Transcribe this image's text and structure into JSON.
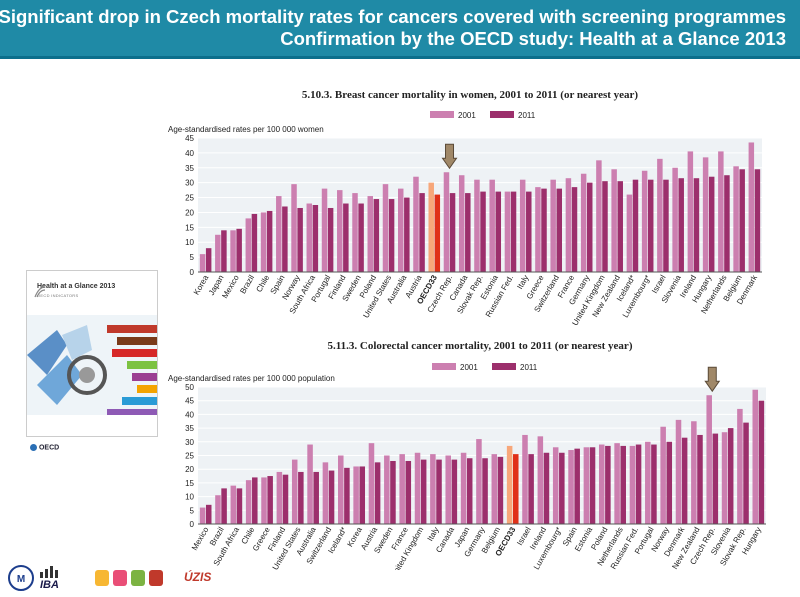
{
  "header": {
    "line1": "Significant drop in Czech mortality rates for cancers covered with screening programmes",
    "line2": "Confirmation by the OECD study: Health at a Glance 2013"
  },
  "cover": {
    "title": "Health at a Glance 2013",
    "subtitle": "OECD INDICATORS",
    "publisher": "OECD"
  },
  "footer": {
    "logo1": "IBA",
    "logo2": "ÚZIS"
  },
  "colors": {
    "header_bg": "#1f8aa6",
    "series_2001": "#cc7fb0",
    "series_2011": "#9c2f6c",
    "oecd_2001": "#f7a77a",
    "oecd_2011": "#e03018",
    "arrow": "#a08868"
  },
  "chart_data": [
    {
      "type": "bar",
      "title": "5.10.3. Breast cancer mortality in women, 2001 to 2011 (or nearest year)",
      "ylabel": "Age-standardised rates per 100 000 women",
      "ylim": [
        0,
        45
      ],
      "yticks": [
        0,
        5,
        10,
        15,
        20,
        25,
        30,
        35,
        40,
        45
      ],
      "grid": true,
      "legend": "top-center",
      "highlight": "OECD33",
      "arrow_at": "Czech Rep.",
      "categories": [
        "Korea",
        "Japan",
        "Mexico",
        "Brazil",
        "Chile",
        "Spain",
        "Norway",
        "South Africa",
        "Portugal",
        "Finland",
        "Sweden",
        "Poland",
        "United States",
        "Australia",
        "Austria",
        "OECD33",
        "Czech Rep.",
        "Canada",
        "Slovak Rep.",
        "Estonia",
        "Russian Fed.",
        "Italy",
        "Greece",
        "Switzerland",
        "France",
        "Germany",
        "United Kingdom",
        "New Zealand",
        "Iceland*",
        "Luxembourg*",
        "Israel",
        "Slovenia",
        "Ireland",
        "Hungary",
        "Netherlands",
        "Belgium",
        "Denmark"
      ],
      "series": [
        {
          "name": "2001",
          "values": [
            6,
            12.5,
            14,
            18,
            20,
            25.5,
            29.5,
            23,
            28,
            27.5,
            26.5,
            25.5,
            29.5,
            28,
            32,
            30,
            33.5,
            32.5,
            31,
            31,
            27,
            31,
            28.5,
            31,
            31.5,
            33,
            37.5,
            34.5,
            26,
            34,
            38,
            35,
            40.5,
            38.5,
            40.5,
            35.5,
            43.5
          ]
        },
        {
          "name": "2011",
          "values": [
            8,
            14,
            14.5,
            19.5,
            20.5,
            22,
            21.5,
            22.5,
            21.5,
            23,
            23,
            24.5,
            24.5,
            25,
            26.5,
            26,
            26.5,
            26.5,
            27,
            27,
            27,
            27,
            28,
            28,
            28.5,
            30,
            30.5,
            30.5,
            31,
            31,
            31,
            31.5,
            31.5,
            32,
            32.5,
            34.5,
            34.5
          ]
        }
      ]
    },
    {
      "type": "bar",
      "title": "5.11.3. Colorectal cancer mortality, 2001 to 2011 (or nearest year)",
      "ylabel": "Age-standardised rates per 100 000 population",
      "ylim": [
        0,
        50
      ],
      "yticks": [
        0,
        5,
        10,
        15,
        20,
        25,
        30,
        35,
        40,
        45,
        50
      ],
      "grid": true,
      "legend": "top-center",
      "highlight": "OECD33",
      "arrow_at": "Czech Rep.",
      "categories": [
        "Mexico",
        "Brazil",
        "South Africa",
        "Chile",
        "Greece",
        "Finland",
        "United States",
        "Australia",
        "Switzerland",
        "Iceland*",
        "Korea",
        "Austria",
        "Sweden",
        "France",
        "United Kingdom",
        "Italy",
        "Canada",
        "Japan",
        "Germany",
        "Belgium",
        "OECD33",
        "Israel",
        "Ireland",
        "Luxembourg*",
        "Spain",
        "Estonia",
        "Poland",
        "Netherlands",
        "Russian Fed.",
        "Portugal",
        "Norway",
        "Denmark",
        "New Zealand",
        "Czech Rep.",
        "Slovenia",
        "Slovak Rep.",
        "Hungary"
      ],
      "series": [
        {
          "name": "2001",
          "values": [
            6,
            10.5,
            14,
            16,
            17,
            19,
            23.5,
            29,
            22.5,
            25,
            21,
            29.5,
            25,
            25.5,
            26,
            25.5,
            25,
            26,
            31,
            25.5,
            28.5,
            32.5,
            32,
            28,
            27,
            28,
            29,
            29.5,
            28.5,
            30,
            35.5,
            38,
            37.5,
            47,
            33.5,
            42,
            49
          ]
        },
        {
          "name": "2011",
          "values": [
            7,
            13,
            13,
            17,
            17.5,
            18,
            19,
            19,
            19.5,
            20.5,
            21,
            22.5,
            23,
            23,
            23.5,
            23.5,
            23.5,
            24,
            24,
            24.5,
            25.5,
            25.5,
            26,
            26,
            27.5,
            28,
            28.5,
            28.5,
            29,
            29,
            30,
            31.5,
            32.5,
            33,
            35,
            37,
            45
          ]
        }
      ]
    }
  ]
}
